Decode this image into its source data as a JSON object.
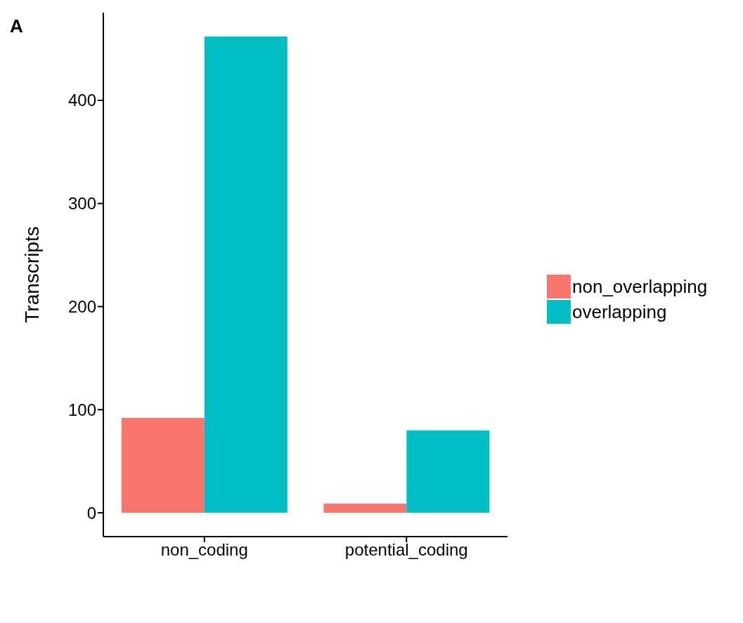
{
  "chart_data": {
    "type": "bar",
    "annotations": [
      "A"
    ],
    "ylabel": "Transcripts",
    "categories": [
      "non_coding",
      "potential_coding"
    ],
    "series": [
      {
        "name": "non_overlapping",
        "color": "#f8766d",
        "values": [
          92,
          9
        ]
      },
      {
        "name": "overlapping",
        "color": "#00bfc4",
        "values": [
          462,
          80
        ]
      }
    ],
    "ylim": [
      -23.1,
      485.1
    ],
    "yticks": [
      0,
      100,
      200,
      300,
      400
    ],
    "grid": false,
    "legend": "right"
  }
}
